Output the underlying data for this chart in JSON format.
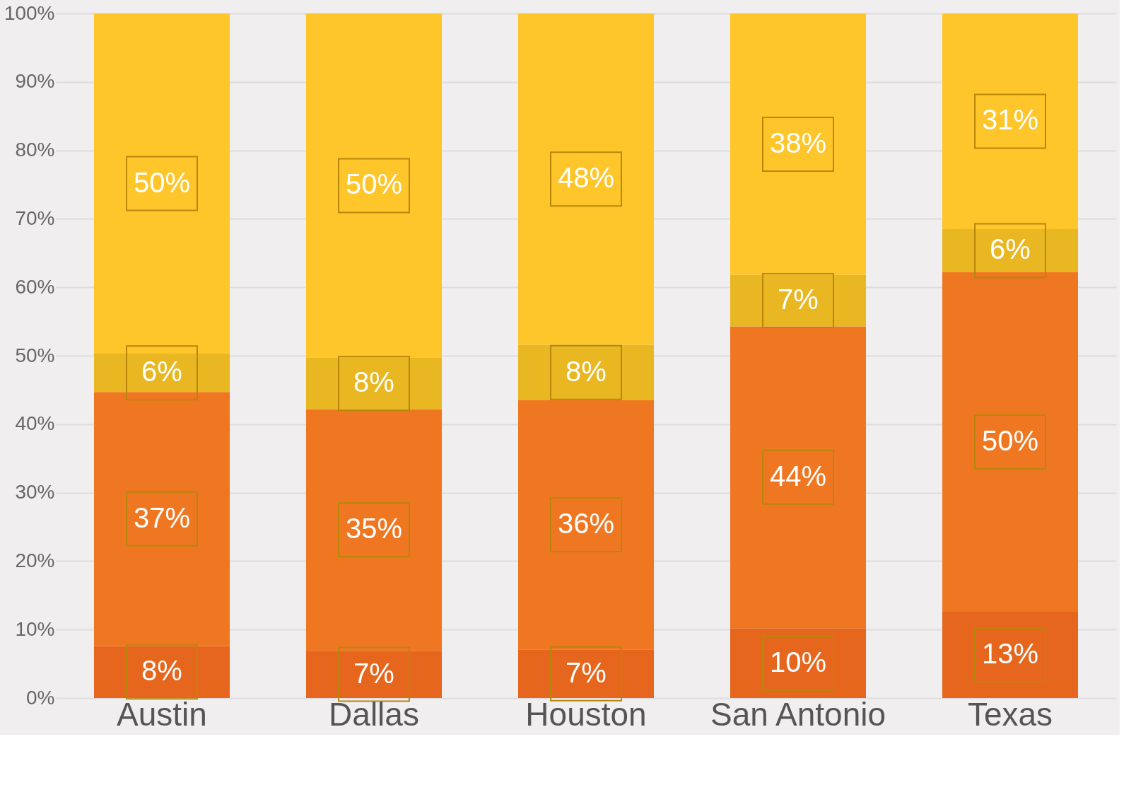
{
  "chart_data": {
    "type": "bar",
    "stacked": true,
    "categories": [
      "Austin",
      "Dallas",
      "Houston",
      "San Antonio",
      "Texas"
    ],
    "series": [
      {
        "color": "#e5661c",
        "values": [
          7.6,
          6.9,
          7.1,
          10.2,
          12.6
        ],
        "value_labels": [
          "8%",
          "7%",
          "7%",
          "10%",
          "13%"
        ]
      },
      {
        "color": "#ef7722",
        "values": [
          37.1,
          35.3,
          36.4,
          44.1,
          49.6
        ],
        "value_labels": [
          "37%",
          "35%",
          "36%",
          "44%",
          "50%"
        ]
      },
      {
        "color": "#e9b722",
        "values": [
          5.6,
          7.5,
          8.1,
          7.5,
          6.3
        ],
        "value_labels": [
          "6%",
          "8%",
          "8%",
          "7%",
          "6%"
        ]
      },
      {
        "color": "#fec62a",
        "values": [
          49.7,
          50.3,
          48.4,
          38.2,
          31.5
        ],
        "value_labels": [
          "50%",
          "50%",
          "48%",
          "38%",
          "31%"
        ]
      }
    ],
    "ylim": [
      0,
      100
    ],
    "yticks": [
      {
        "value": 0,
        "label": "0%"
      },
      {
        "value": 10,
        "label": "10%"
      },
      {
        "value": 20,
        "label": "20%"
      },
      {
        "value": 30,
        "label": "30%"
      },
      {
        "value": 40,
        "label": "40%"
      },
      {
        "value": 50,
        "label": "50%"
      },
      {
        "value": 60,
        "label": "60%"
      },
      {
        "value": 70,
        "label": "70%"
      },
      {
        "value": 80,
        "label": "80%"
      },
      {
        "value": 90,
        "label": "90%"
      },
      {
        "value": 100,
        "label": "100%"
      }
    ],
    "grid": "y"
  }
}
